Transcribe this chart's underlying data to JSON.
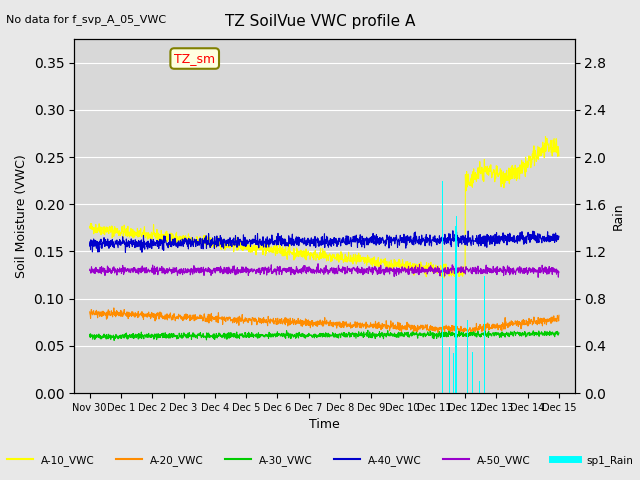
{
  "title": "TZ SoilVue VWC profile A",
  "no_data_text": "No data for f_svp_A_05_VWC",
  "ylabel_left": "Soil Moisture (VWC)",
  "ylabel_right": "Rain",
  "xlabel": "Time",
  "ylim_left": [
    0.0,
    0.375
  ],
  "ylim_right": [
    0.0,
    3.0
  ],
  "yticks_left": [
    0.0,
    0.05,
    0.1,
    0.15,
    0.2,
    0.25,
    0.3,
    0.35
  ],
  "yticks_right": [
    0.0,
    0.4,
    0.8,
    1.2,
    1.6,
    2.0,
    2.4,
    2.8
  ],
  "colors": {
    "A10": "#ffff00",
    "A20": "#ff8c00",
    "A30": "#00cc00",
    "A40": "#0000cc",
    "A50": "#9900cc",
    "Rain": "#00ffff"
  },
  "legend_labels": [
    "A-10_VWC",
    "A-20_VWC",
    "A-30_VWC",
    "A-40_VWC",
    "A-50_VWC",
    "sp1_Rain"
  ],
  "annotation_box": "TZ_sm",
  "background_color": "#e8e8e8",
  "plot_bg_color": "#d8d8d8",
  "n_days": 16,
  "x_tick_labels": [
    "Nov 30",
    "Dec 1",
    "Dec 2",
    "Dec 3",
    "Dec 4",
    "Dec 5",
    "Dec 6",
    "Dec 7",
    "Dec 8",
    "Dec 9",
    "Dec 10",
    "Dec 11",
    "Dec 12",
    "Dec 13",
    "Dec 14",
    "Dec 15"
  ],
  "pts_per_day": 96,
  "xlim": [
    -0.5,
    15.5
  ]
}
